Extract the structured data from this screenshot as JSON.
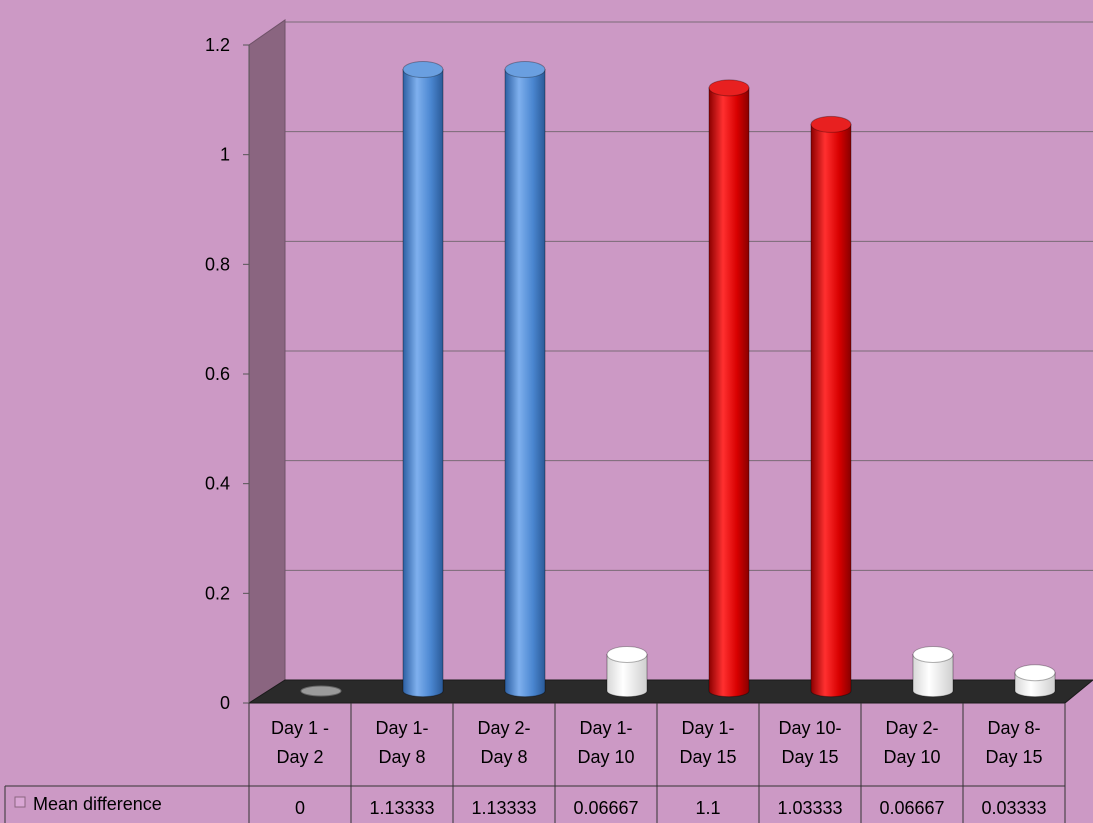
{
  "chart_data": {
    "type": "bar",
    "title": "",
    "xlabel": "",
    "ylabel": "",
    "ylim": [
      0,
      1.2
    ],
    "yticks": [
      "0",
      "0.2",
      "0.4",
      "0.6",
      "0.8",
      "1",
      "1.2"
    ],
    "grid": true,
    "bar_style": "3d-cylinder",
    "legend_position": "in data table, left of values row",
    "categories": [
      [
        "Day 1 -",
        "Day 2"
      ],
      [
        "Day 1-",
        "Day 8"
      ],
      [
        "Day 2-",
        "Day 8"
      ],
      [
        "Day 1-",
        "Day  10"
      ],
      [
        "Day 1-",
        "Day 15"
      ],
      [
        "Day 10-",
        "Day 15"
      ],
      [
        "Day 2-",
        "Day 10"
      ],
      [
        "Day 8-",
        "Day 15"
      ]
    ],
    "series": [
      {
        "name": "Mean difference",
        "values": [
          0,
          1.13333,
          1.13333,
          0.06667,
          1.1,
          1.03333,
          0.06667,
          0.03333
        ],
        "value_labels": [
          "0",
          "1.13333",
          "1.13333",
          "0.06667",
          "1.1",
          "1.03333",
          "0.06667",
          "0.03333"
        ]
      }
    ],
    "bar_colors": [
      "#9a9a9a",
      "#4a86d0",
      "#4a86d0",
      "#ffffff",
      "#d80000",
      "#d80000",
      "#ffffff",
      "#ffffff"
    ],
    "colors": {
      "background": "#cc99c5",
      "side_wall": "#8a6580",
      "floor": "#2a2a2a",
      "gridline": "#7a6a76",
      "legend_key": "#d9a6d4"
    }
  }
}
